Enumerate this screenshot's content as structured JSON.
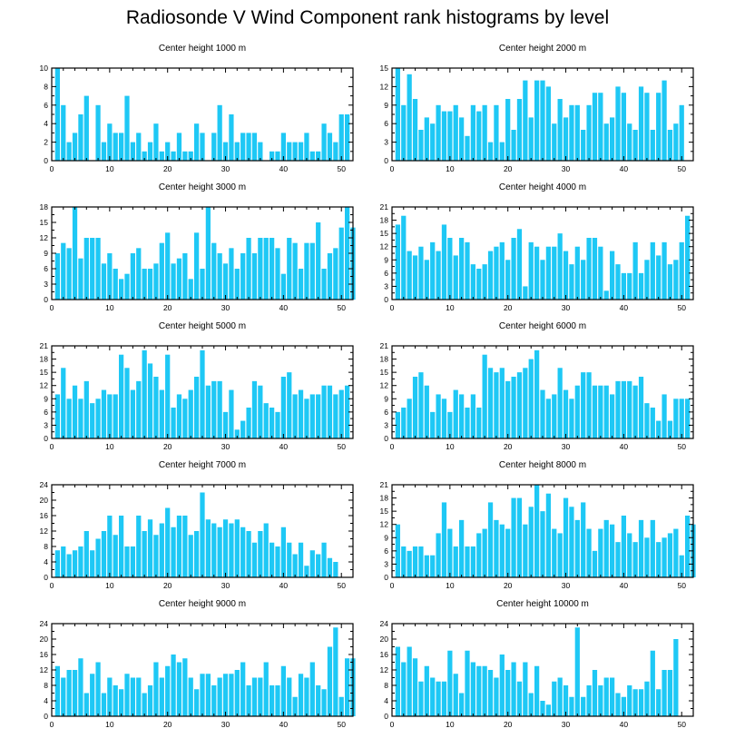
{
  "title": "Radiosonde V Wind Component rank histograms by level",
  "colors": {
    "bar": "#1ec8f5",
    "frame": "#000000",
    "background": "#ffffff"
  },
  "chart_data": [
    {
      "type": "bar",
      "title": "Center height 1000 m",
      "xlim": [
        0,
        52
      ],
      "ylim": [
        0,
        10
      ],
      "xticks": [
        0,
        10,
        20,
        30,
        40,
        50
      ],
      "yticks": [
        0,
        2,
        4,
        6,
        8,
        10
      ],
      "values": [
        10,
        6,
        2,
        3,
        5,
        7,
        0,
        6,
        2,
        4,
        3,
        3,
        7,
        2,
        3,
        1,
        2,
        4,
        1,
        2,
        1,
        3,
        1,
        1,
        4,
        3,
        0,
        3,
        6,
        2,
        5,
        2,
        3,
        3,
        3,
        2,
        0,
        1,
        1,
        3,
        2,
        2,
        2,
        3,
        1,
        1,
        4,
        3,
        2,
        5,
        5
      ]
    },
    {
      "type": "bar",
      "title": "Center height 2000 m",
      "xlim": [
        0,
        52
      ],
      "ylim": [
        0,
        15
      ],
      "xticks": [
        0,
        10,
        20,
        30,
        40,
        50
      ],
      "yticks": [
        0,
        3,
        6,
        9,
        12,
        15
      ],
      "values": [
        15,
        9,
        14,
        10,
        5,
        7,
        6,
        9,
        8,
        8,
        9,
        7,
        4,
        9,
        8,
        9,
        3,
        9,
        3,
        10,
        5,
        10,
        13,
        7,
        13,
        13,
        12,
        6,
        10,
        7,
        9,
        9,
        5,
        9,
        11,
        11,
        6,
        7,
        12,
        11,
        6,
        5,
        12,
        11,
        5,
        11,
        13,
        5,
        6,
        9
      ]
    },
    {
      "type": "bar",
      "title": "Center height 3000 m",
      "xlim": [
        0,
        52
      ],
      "ylim": [
        0,
        18
      ],
      "xticks": [
        0,
        10,
        20,
        30,
        40,
        50
      ],
      "yticks": [
        0,
        3,
        6,
        9,
        12,
        15,
        18
      ],
      "values": [
        9,
        11,
        10,
        18,
        8,
        12,
        12,
        12,
        7,
        9,
        6,
        4,
        5,
        9,
        10,
        6,
        6,
        7,
        11,
        13,
        7,
        8,
        9,
        4,
        13,
        6,
        18,
        11,
        9,
        7,
        10,
        6,
        9,
        12,
        9,
        12,
        12,
        12,
        10,
        5,
        12,
        11,
        6,
        11,
        11,
        15,
        6,
        9,
        10,
        14,
        18,
        14
      ]
    },
    {
      "type": "bar",
      "title": "Center height 4000 m",
      "xlim": [
        0,
        52
      ],
      "ylim": [
        0,
        21
      ],
      "xticks": [
        0,
        10,
        20,
        30,
        40,
        50
      ],
      "yticks": [
        0,
        3,
        6,
        9,
        12,
        15,
        18,
        21
      ],
      "values": [
        17,
        19,
        11,
        10,
        12,
        9,
        13,
        11,
        17,
        14,
        10,
        14,
        13,
        8,
        7,
        8,
        11,
        12,
        13,
        9,
        14,
        16,
        3,
        13,
        12,
        9,
        12,
        12,
        15,
        11,
        8,
        12,
        9,
        14,
        14,
        12,
        2,
        11,
        8,
        6,
        6,
        13,
        6,
        9,
        13,
        10,
        13,
        8,
        9,
        13,
        19
      ]
    },
    {
      "type": "bar",
      "title": "Center height 5000 m",
      "xlim": [
        0,
        52
      ],
      "ylim": [
        0,
        21
      ],
      "xticks": [
        0,
        10,
        20,
        30,
        40,
        50
      ],
      "yticks": [
        0,
        3,
        6,
        9,
        12,
        15,
        18,
        21
      ],
      "values": [
        10,
        16,
        9,
        12,
        9,
        13,
        8,
        9,
        11,
        10,
        10,
        19,
        16,
        11,
        13,
        20,
        17,
        14,
        11,
        19,
        7,
        10,
        9,
        11,
        14,
        20,
        12,
        13,
        13,
        6,
        11,
        2,
        4,
        7,
        13,
        12,
        8,
        7,
        6,
        14,
        15,
        10,
        11,
        9,
        10,
        10,
        12,
        12,
        10,
        11,
        12
      ]
    },
    {
      "type": "bar",
      "title": "Center height 6000 m",
      "xlim": [
        0,
        52
      ],
      "ylim": [
        0,
        21
      ],
      "xticks": [
        0,
        10,
        20,
        30,
        40,
        50
      ],
      "yticks": [
        0,
        3,
        6,
        9,
        12,
        15,
        18,
        21
      ],
      "values": [
        6,
        7,
        9,
        14,
        15,
        12,
        6,
        10,
        9,
        6,
        11,
        10,
        7,
        10,
        7,
        19,
        16,
        15,
        16,
        13,
        14,
        15,
        16,
        18,
        20,
        11,
        9,
        10,
        16,
        11,
        9,
        12,
        15,
        15,
        12,
        12,
        12,
        10,
        13,
        13,
        13,
        12,
        14,
        8,
        7,
        4,
        10,
        4,
        9,
        9,
        9
      ]
    },
    {
      "type": "bar",
      "title": "Center height 7000 m",
      "xlim": [
        0,
        52
      ],
      "ylim": [
        0,
        24
      ],
      "xticks": [
        0,
        10,
        20,
        30,
        40,
        50
      ],
      "yticks": [
        0,
        4,
        8,
        12,
        16,
        20,
        24
      ],
      "values": [
        7,
        8,
        6,
        7,
        8,
        12,
        7,
        10,
        12,
        16,
        11,
        16,
        8,
        8,
        16,
        12,
        15,
        11,
        14,
        18,
        13,
        16,
        16,
        11,
        12,
        22,
        15,
        14,
        13,
        15,
        14,
        15,
        13,
        12,
        9,
        12,
        14,
        9,
        8,
        13,
        9,
        6,
        9,
        3,
        7,
        6,
        9,
        5,
        4
      ]
    },
    {
      "type": "bar",
      "title": "Center height 8000 m",
      "xlim": [
        0,
        52
      ],
      "ylim": [
        0,
        21
      ],
      "xticks": [
        0,
        10,
        20,
        30,
        40,
        50
      ],
      "yticks": [
        0,
        3,
        6,
        9,
        12,
        15,
        18,
        21
      ],
      "values": [
        12,
        7,
        6,
        7,
        7,
        5,
        5,
        10,
        17,
        11,
        7,
        13,
        7,
        7,
        10,
        11,
        17,
        13,
        12,
        11,
        18,
        18,
        12,
        16,
        21,
        15,
        19,
        11,
        10,
        18,
        16,
        13,
        17,
        11,
        6,
        11,
        13,
        12,
        8,
        14,
        10,
        8,
        13,
        9,
        13,
        8,
        9,
        10,
        11,
        5,
        14,
        12
      ]
    },
    {
      "type": "bar",
      "title": "Center height 9000 m",
      "xlim": [
        0,
        52
      ],
      "ylim": [
        0,
        24
      ],
      "xticks": [
        0,
        10,
        20,
        30,
        40,
        50
      ],
      "yticks": [
        0,
        4,
        8,
        12,
        16,
        20,
        24
      ],
      "values": [
        13,
        10,
        12,
        12,
        15,
        6,
        11,
        14,
        6,
        10,
        8,
        7,
        11,
        10,
        10,
        6,
        8,
        14,
        10,
        13,
        16,
        14,
        15,
        10,
        7,
        11,
        11,
        8,
        10,
        11,
        11,
        12,
        14,
        8,
        10,
        10,
        14,
        8,
        8,
        13,
        10,
        5,
        11,
        10,
        14,
        8,
        7,
        18,
        23,
        5,
        15,
        15
      ]
    },
    {
      "type": "bar",
      "title": "Center height 10000 m",
      "xlim": [
        0,
        52
      ],
      "ylim": [
        0,
        24
      ],
      "xticks": [
        0,
        10,
        20,
        30,
        40,
        50
      ],
      "yticks": [
        0,
        4,
        8,
        12,
        16,
        20,
        24
      ],
      "values": [
        18,
        14,
        18,
        15,
        9,
        13,
        10,
        9,
        9,
        17,
        11,
        6,
        17,
        14,
        13,
        13,
        12,
        10,
        16,
        12,
        14,
        9,
        14,
        6,
        13,
        4,
        3,
        9,
        10,
        8,
        5,
        23,
        5,
        8,
        12,
        8,
        10,
        10,
        6,
        5,
        8,
        7,
        7,
        9,
        17,
        7,
        12,
        12,
        20
      ]
    }
  ]
}
